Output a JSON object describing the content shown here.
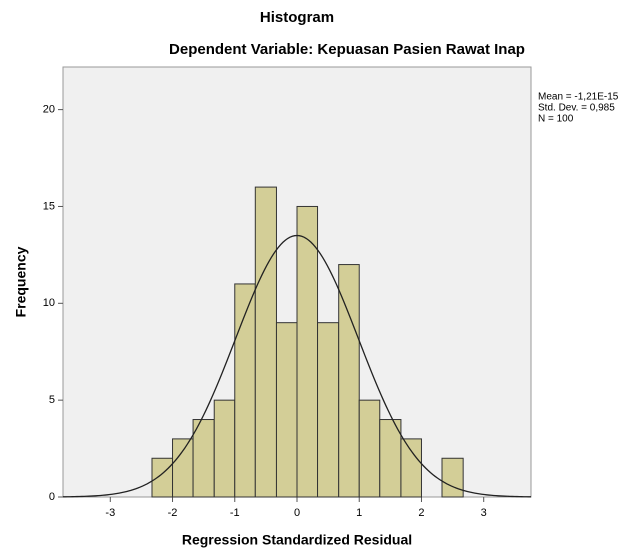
{
  "chart_data": {
    "type": "histogram",
    "title": "Histogram",
    "subtitle": "Dependent Variable: Kepuasan Pasien Rawat Inap",
    "x_label": "Regression Standardized Residual",
    "y_label": "Frequency",
    "bins": [
      -2.33,
      -2,
      -1.67,
      -1.33,
      -1,
      -0.67,
      -0.33,
      0,
      0.33,
      0.67,
      1,
      1.33,
      1.67,
      2,
      2.33,
      2.67
    ],
    "values": [
      2,
      3,
      4,
      5,
      11,
      16,
      9,
      15,
      9,
      12,
      5,
      4,
      3,
      0,
      2
    ],
    "color": "#d3ce97",
    "xlim": [
      -3.76,
      3.76
    ],
    "xticks": [
      -3,
      -2,
      -1,
      0,
      1,
      2,
      3
    ],
    "ylim": [
      0,
      22.2
    ],
    "yticks": [
      0,
      5,
      10,
      15,
      20
    ],
    "stats": [
      {
        "value": -1.21e-15,
        "label": "Mean = -1,21E-15"
      },
      {
        "value": 0.985,
        "label": "Std. Dev. = 0,985"
      },
      {
        "value": 100,
        "label": "N = 100"
      }
    ]
  }
}
